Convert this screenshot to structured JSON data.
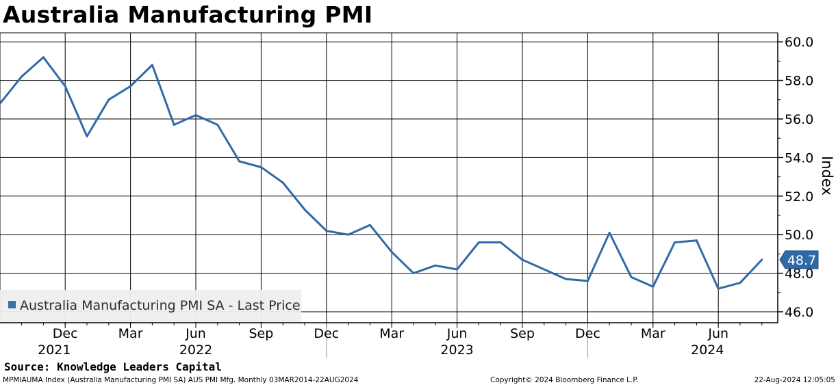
{
  "title": "Australia Manufacturing PMI",
  "source": "Source: Knowledge Leaders Capital",
  "footer": {
    "left": "MPMIAUMA Index (Australia Manufacturing PMI SA) AUS PMI Mfg.  Monthly 03MAR2014-22AUG2024",
    "center": "Copyright© 2024 Bloomberg Finance L.P.",
    "right": "22-Aug-2024 12:05:05"
  },
  "legend": {
    "label": "Australia Manufacturing PMI SA - Last Price"
  },
  "colors": {
    "line": "#2f6aa8",
    "grid": "#000000",
    "axis": "#000000"
  },
  "chart_data": {
    "type": "line",
    "title": "Australia Manufacturing PMI",
    "ylabel": "Index",
    "xlabel": "",
    "ylim": [
      45.5,
      60.5
    ],
    "yticks": [
      46.0,
      48.0,
      50.0,
      52.0,
      54.0,
      56.0,
      58.0,
      60.0
    ],
    "ytick_labels": [
      "46.0",
      "48.0",
      "50.0",
      "52.0",
      "54.0",
      "56.0",
      "58.0",
      "60.0"
    ],
    "axis_position": "right",
    "grid": true,
    "last_value_label": "48.7",
    "x_month_labels": [
      {
        "label": "Dec",
        "month_index": 2
      },
      {
        "label": "Mar",
        "month_index": 5
      },
      {
        "label": "Jun",
        "month_index": 8
      },
      {
        "label": "Sep",
        "month_index": 11
      },
      {
        "label": "Dec",
        "month_index": 14
      },
      {
        "label": "Mar",
        "month_index": 17
      },
      {
        "label": "Jun",
        "month_index": 20
      },
      {
        "label": "Sep",
        "month_index": 23
      },
      {
        "label": "Dec",
        "month_index": 26
      },
      {
        "label": "Mar",
        "month_index": 29
      },
      {
        "label": "Jun",
        "month_index": 32
      }
    ],
    "x_year_labels": [
      {
        "label": "2021",
        "month_index": 1.5
      },
      {
        "label": "2022",
        "month_index": 8
      },
      {
        "label": "2023",
        "month_index": 20
      },
      {
        "label": "2024",
        "month_index": 31.5
      }
    ],
    "x_year_dividers": [
      14,
      26
    ],
    "series": [
      {
        "name": "Australia Manufacturing PMI SA - Last Price",
        "x_month_index": [
          0,
          1,
          2,
          3,
          4,
          5,
          6,
          7,
          8,
          9,
          10,
          11,
          12,
          13,
          14,
          15,
          16,
          17,
          18,
          19,
          20,
          21,
          22,
          23,
          24,
          25,
          26,
          27,
          28,
          29,
          30,
          31,
          32,
          33,
          34
        ],
        "x_dates": [
          "Oct 2021",
          "Nov 2021",
          "Dec 2021",
          "Jan 2022",
          "Feb 2022",
          "Mar 2022",
          "Apr 2022",
          "May 2022",
          "Jun 2022",
          "Jul 2022",
          "Aug 2022",
          "Sep 2022",
          "Oct 2022",
          "Nov 2022",
          "Dec 2022",
          "Jan 2023",
          "Feb 2023",
          "Mar 2023",
          "Apr 2023",
          "May 2023",
          "Jun 2023",
          "Jul 2023",
          "Aug 2023",
          "Sep 2023",
          "Oct 2023",
          "Nov 2023",
          "Dec 2023",
          "Jan 2024",
          "Feb 2024",
          "Mar 2024",
          "Apr 2024",
          "May 2024",
          "Jun 2024",
          "Jul 2024",
          "Aug 2024"
        ],
        "values": [
          58.2,
          59.2,
          57.7,
          55.1,
          57.0,
          57.7,
          58.8,
          55.7,
          56.2,
          55.7,
          53.8,
          53.5,
          52.7,
          51.3,
          50.2,
          50.0,
          50.5,
          49.1,
          48.0,
          48.4,
          48.2,
          49.6,
          49.6,
          48.7,
          48.2,
          47.7,
          47.6,
          50.1,
          47.8,
          47.3,
          49.6,
          49.7,
          47.2,
          47.5,
          48.7
        ],
        "leading_value": 56.8
      }
    ]
  }
}
